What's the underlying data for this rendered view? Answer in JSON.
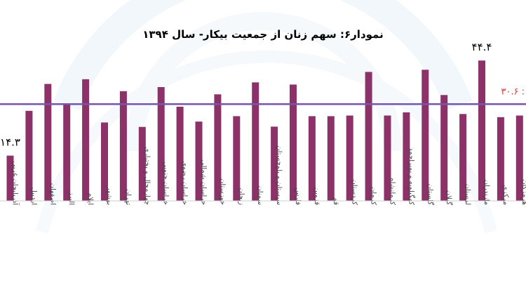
{
  "chart_data": {
    "type": "bar",
    "title": "نمودار۶: سهم زنان از جمعیت بیکار- سال ۱۳۹۴",
    "xlabel": "",
    "ylabel": "",
    "ylim": [
      0,
      50
    ],
    "grid": false,
    "categories": [
      "آذربایجان غربی",
      "اردبیل",
      "اصفهان",
      "البرز",
      "ایلام",
      "بوشهر",
      "تهران",
      "چهارمحال و بختیاری",
      "خراسان جنوبی",
      "خراسان رضوی",
      "خراسان شمالی",
      "خوزستان",
      "زنجان",
      "سمنان",
      "سیستان و بلوچستان",
      "فارس",
      "قزوین",
      "قم",
      "کردستان",
      "کرمان",
      "کرمانشاه",
      "کهگیلویه و بویراحمد",
      "گلستان",
      "گیلان",
      "لرستان",
      "مازندران",
      "مرکزی",
      "هرمزگان"
    ],
    "values": [
      14.3,
      28.5,
      37.0,
      30.7,
      38.5,
      24.8,
      34.7,
      23.4,
      36.0,
      29.8,
      25.1,
      33.7,
      26.8,
      37.5,
      23.5,
      36.8,
      26.8,
      26.8,
      27.0,
      40.8,
      27.0,
      28.0,
      41.5,
      33.5,
      27.5,
      44.4,
      26.5,
      27.0
    ],
    "data_labels": [
      {
        "category": "آذربایجان غربی",
        "text": "۱۴.۳"
      },
      {
        "category": "مازندران",
        "text": "۴۴.۴"
      }
    ],
    "reference_line": {
      "value": 30.6,
      "label": "۳۰.۶ :"
    },
    "colors": {
      "bar": "#8c3268",
      "reference_line": "#7656a8",
      "reference_label": "#e23535"
    }
  }
}
